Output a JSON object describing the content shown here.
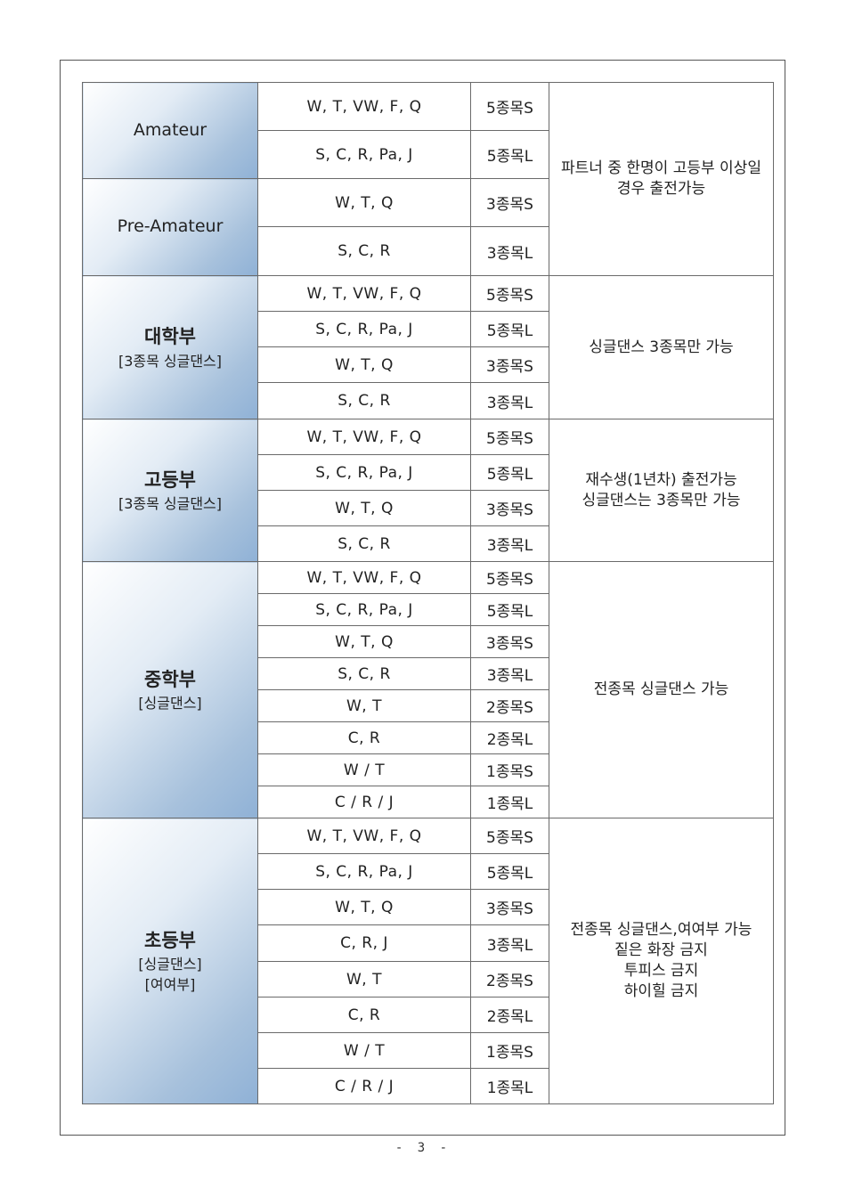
{
  "groups": [
    {
      "id": "amateur",
      "name": "Amateur",
      "sub": "",
      "note_lines": [
        "파트너 중 한명이 고등부 이상일",
        "경우 출전가능"
      ],
      "rows": [
        {
          "dances": "W, T, VW, F, Q",
          "count": "5종목S"
        },
        {
          "dances": "S, C, R, Pa, J",
          "count": "5종목L"
        }
      ]
    },
    {
      "id": "pre-amateur",
      "name": "Pre-Amateur",
      "sub": "",
      "rows": [
        {
          "dances": "W, T, Q",
          "count": "3종목S"
        },
        {
          "dances": "S, C, R",
          "count": "3종목L"
        }
      ]
    },
    {
      "id": "university",
      "name": "대학부",
      "sub": "[3종목 싱글댄스]",
      "note_lines": [
        "싱글댄스 3종목만 가능"
      ],
      "rows": [
        {
          "dances": "W, T, VW, F, Q",
          "count": "5종목S"
        },
        {
          "dances": "S, C, R, Pa, J",
          "count": "5종목L"
        },
        {
          "dances": "W, T, Q",
          "count": "3종목S"
        },
        {
          "dances": "S, C, R",
          "count": "3종목L"
        }
      ]
    },
    {
      "id": "high-school",
      "name": "고등부",
      "sub": "[3종목 싱글댄스]",
      "note_lines": [
        "재수생(1년차) 출전가능",
        "싱글댄스는 3종목만 가능"
      ],
      "rows": [
        {
          "dances": "W, T, VW, F, Q",
          "count": "5종목S"
        },
        {
          "dances": "S, C, R, Pa, J",
          "count": "5종목L"
        },
        {
          "dances": "W, T, Q",
          "count": "3종목S"
        },
        {
          "dances": "S, C, R",
          "count": "3종목L"
        }
      ]
    },
    {
      "id": "middle-school",
      "name": "중학부",
      "sub": "[싱글댄스]",
      "note_lines": [
        "전종목 싱글댄스 가능"
      ],
      "rows": [
        {
          "dances": "W, T, VW, F, Q",
          "count": "5종목S"
        },
        {
          "dances": "S, C, R, Pa, J",
          "count": "5종목L"
        },
        {
          "dances": "W, T, Q",
          "count": "3종목S"
        },
        {
          "dances": "S, C, R",
          "count": "3종목L"
        },
        {
          "dances": "W, T",
          "count": "2종목S"
        },
        {
          "dances": "C, R",
          "count": "2종목L"
        },
        {
          "dances": "W / T",
          "count": "1종목S"
        },
        {
          "dances": "C / R / J",
          "count": "1종목L"
        }
      ]
    },
    {
      "id": "elementary",
      "name": "초등부",
      "sub": "[싱글댄스]",
      "sub2": "[여여부]",
      "note_lines": [
        "전종목 싱글댄스,여여부 가능",
        "짙은 화장 금지",
        "투피스 금지",
        "하이힐 금지"
      ],
      "rows": [
        {
          "dances": "W, T, VW, F, Q",
          "count": "5종목S"
        },
        {
          "dances": "S, C, R, Pa, J",
          "count": "5종목L"
        },
        {
          "dances": "W, T, Q",
          "count": "3종목S"
        },
        {
          "dances": "C, R, J",
          "count": "3종목L"
        },
        {
          "dances": "W, T",
          "count": "2종목S"
        },
        {
          "dances": "C, R",
          "count": "2종목L"
        },
        {
          "dances": "W / T",
          "count": "1종목S"
        },
        {
          "dances": "C / R / J",
          "count": "1종목L"
        }
      ]
    }
  ],
  "footer": {
    "page_number": "- 3 -"
  }
}
